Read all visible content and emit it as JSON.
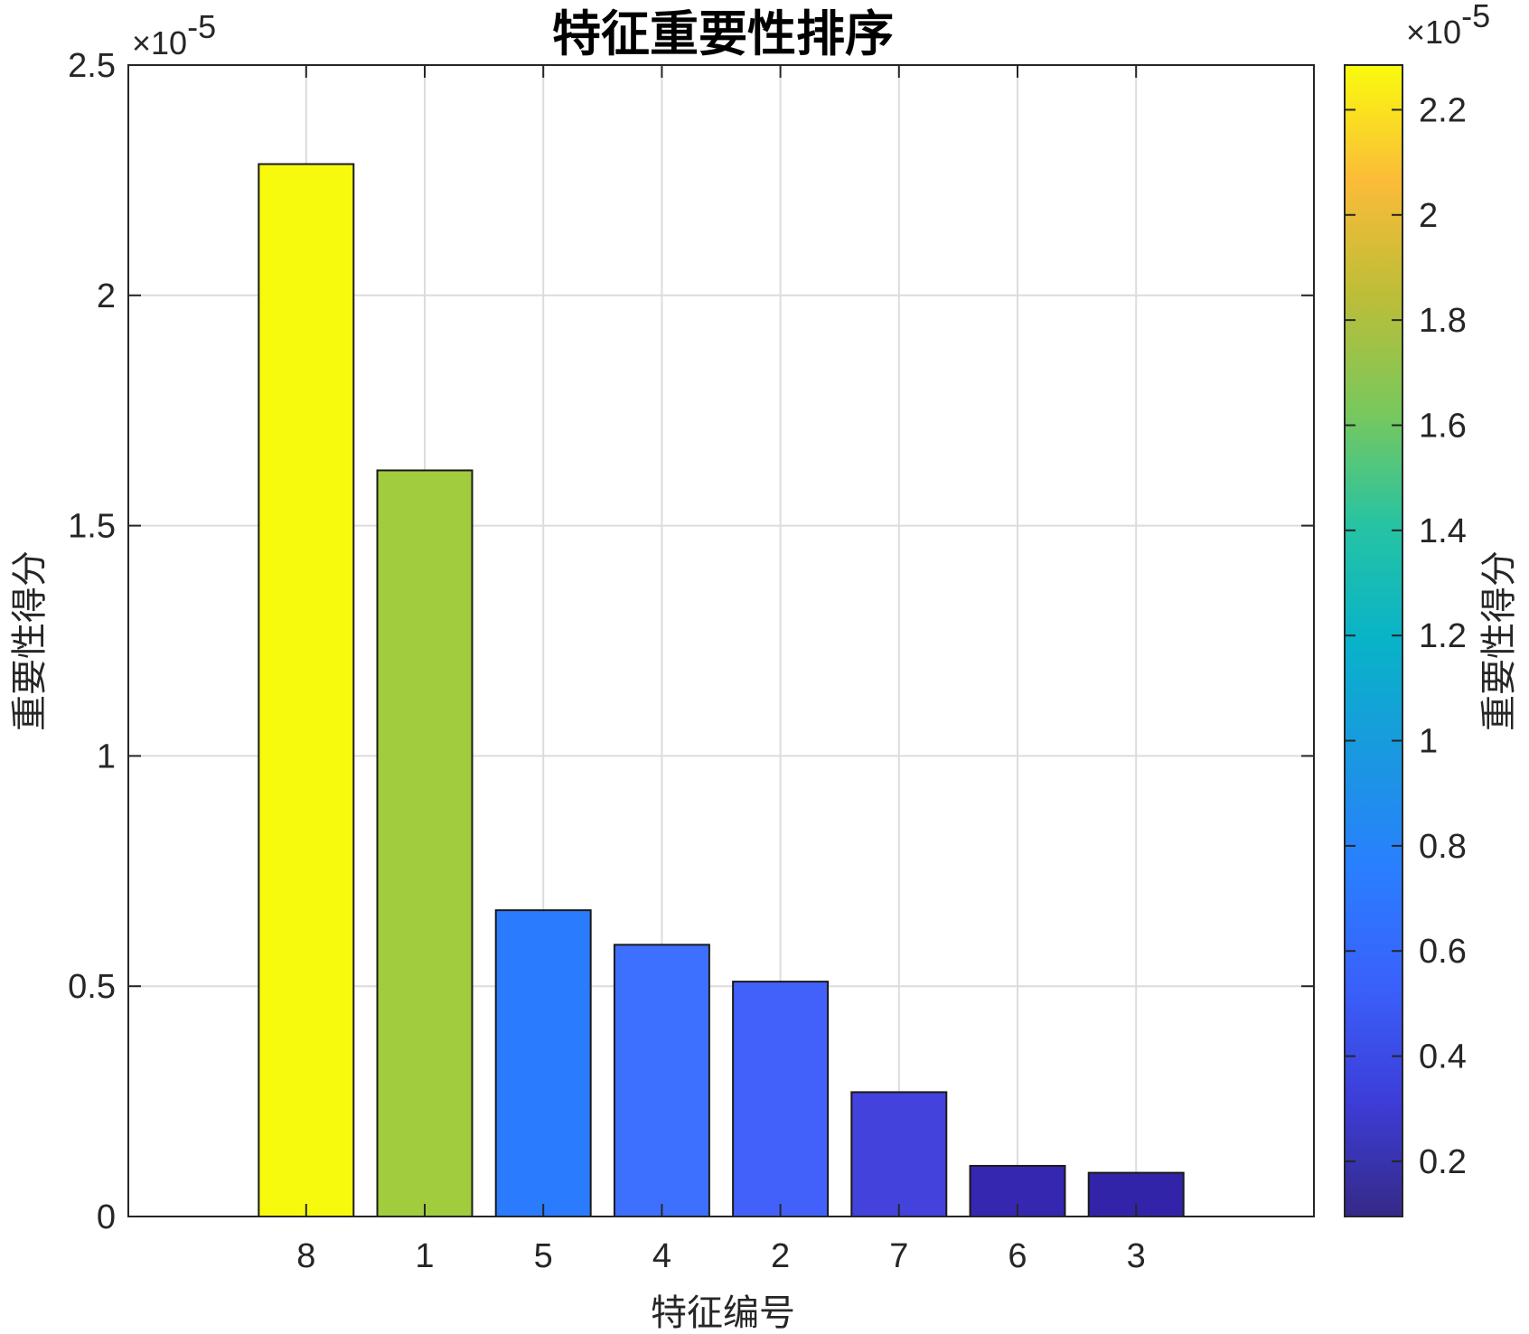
{
  "chart_data": {
    "type": "bar",
    "title": "特征重要性排序",
    "xlabel": "特征编号",
    "ylabel": "重要性得分",
    "categories": [
      "8",
      "1",
      "5",
      "4",
      "2",
      "7",
      "6",
      "3"
    ],
    "values": [
      2.285,
      1.62,
      0.665,
      0.59,
      0.51,
      0.27,
      0.11,
      0.095
    ],
    "ylim": [
      0,
      2.5
    ],
    "yticks": [
      "0",
      "0.5",
      "1",
      "1.5",
      "2",
      "2.5"
    ],
    "y_exponent_label": "×10",
    "y_exponent_power": "-5",
    "grid": true,
    "bar_colors": [
      "#f8fa0d",
      "#a0cc3e",
      "#2b7bff",
      "#3e70ff",
      "#4261fb",
      "#4342dc",
      "#3527b0",
      "#3224a8"
    ],
    "colorbar": {
      "label": "重要性得分",
      "range": [
        0.095,
        2.285
      ],
      "ticks": [
        "0.2",
        "0.4",
        "0.6",
        "0.8",
        "1",
        "1.2",
        "1.4",
        "1.6",
        "1.8",
        "2",
        "2.2"
      ],
      "tick_values": [
        0.2,
        0.4,
        0.6,
        0.8,
        1.0,
        1.2,
        1.4,
        1.6,
        1.8,
        2.0,
        2.2
      ],
      "exponent_label": "×10",
      "exponent_power": "-5",
      "colormap": "parula"
    }
  }
}
